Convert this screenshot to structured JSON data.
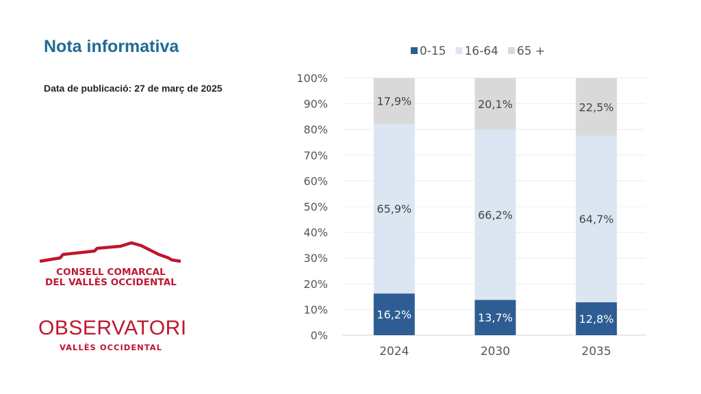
{
  "header": {
    "title": "Nota informativa",
    "date": "Data de publicació: 27 de març de 2025"
  },
  "logos": {
    "consell_line1": "CONSELL COMARCAL",
    "consell_line2": "DEL VALLÈS OCCIDENTAL",
    "observatori": "OBSERVATORI",
    "observatori_sub": "VALLÈS OCCIDENTAL"
  },
  "chart_data": {
    "type": "bar",
    "stacked": true,
    "categories": [
      "2024",
      "2030",
      "2035"
    ],
    "series": [
      {
        "name": "0-15",
        "values": [
          16.2,
          13.7,
          12.8
        ],
        "labels": [
          "16,2%",
          "13,7%",
          "12,8%"
        ],
        "color": "#2e5d93",
        "label_color": "#ffffff"
      },
      {
        "name": "16-64",
        "values": [
          65.9,
          66.2,
          64.7
        ],
        "labels": [
          "65,9%",
          "66,2%",
          "64,7%"
        ],
        "color": "#dce6f2",
        "label_color": "#444444"
      },
      {
        "name": "65 +",
        "values": [
          17.9,
          20.1,
          22.5
        ],
        "labels": [
          "17,9%",
          "20,1%",
          "22,5%"
        ],
        "color": "#d9d9d9",
        "label_color": "#444444"
      }
    ],
    "yticks": [
      "0%",
      "10%",
      "20%",
      "30%",
      "40%",
      "50%",
      "60%",
      "70%",
      "80%",
      "90%",
      "100%"
    ],
    "ylim": [
      0,
      100
    ],
    "grid": true,
    "legend": "top"
  }
}
